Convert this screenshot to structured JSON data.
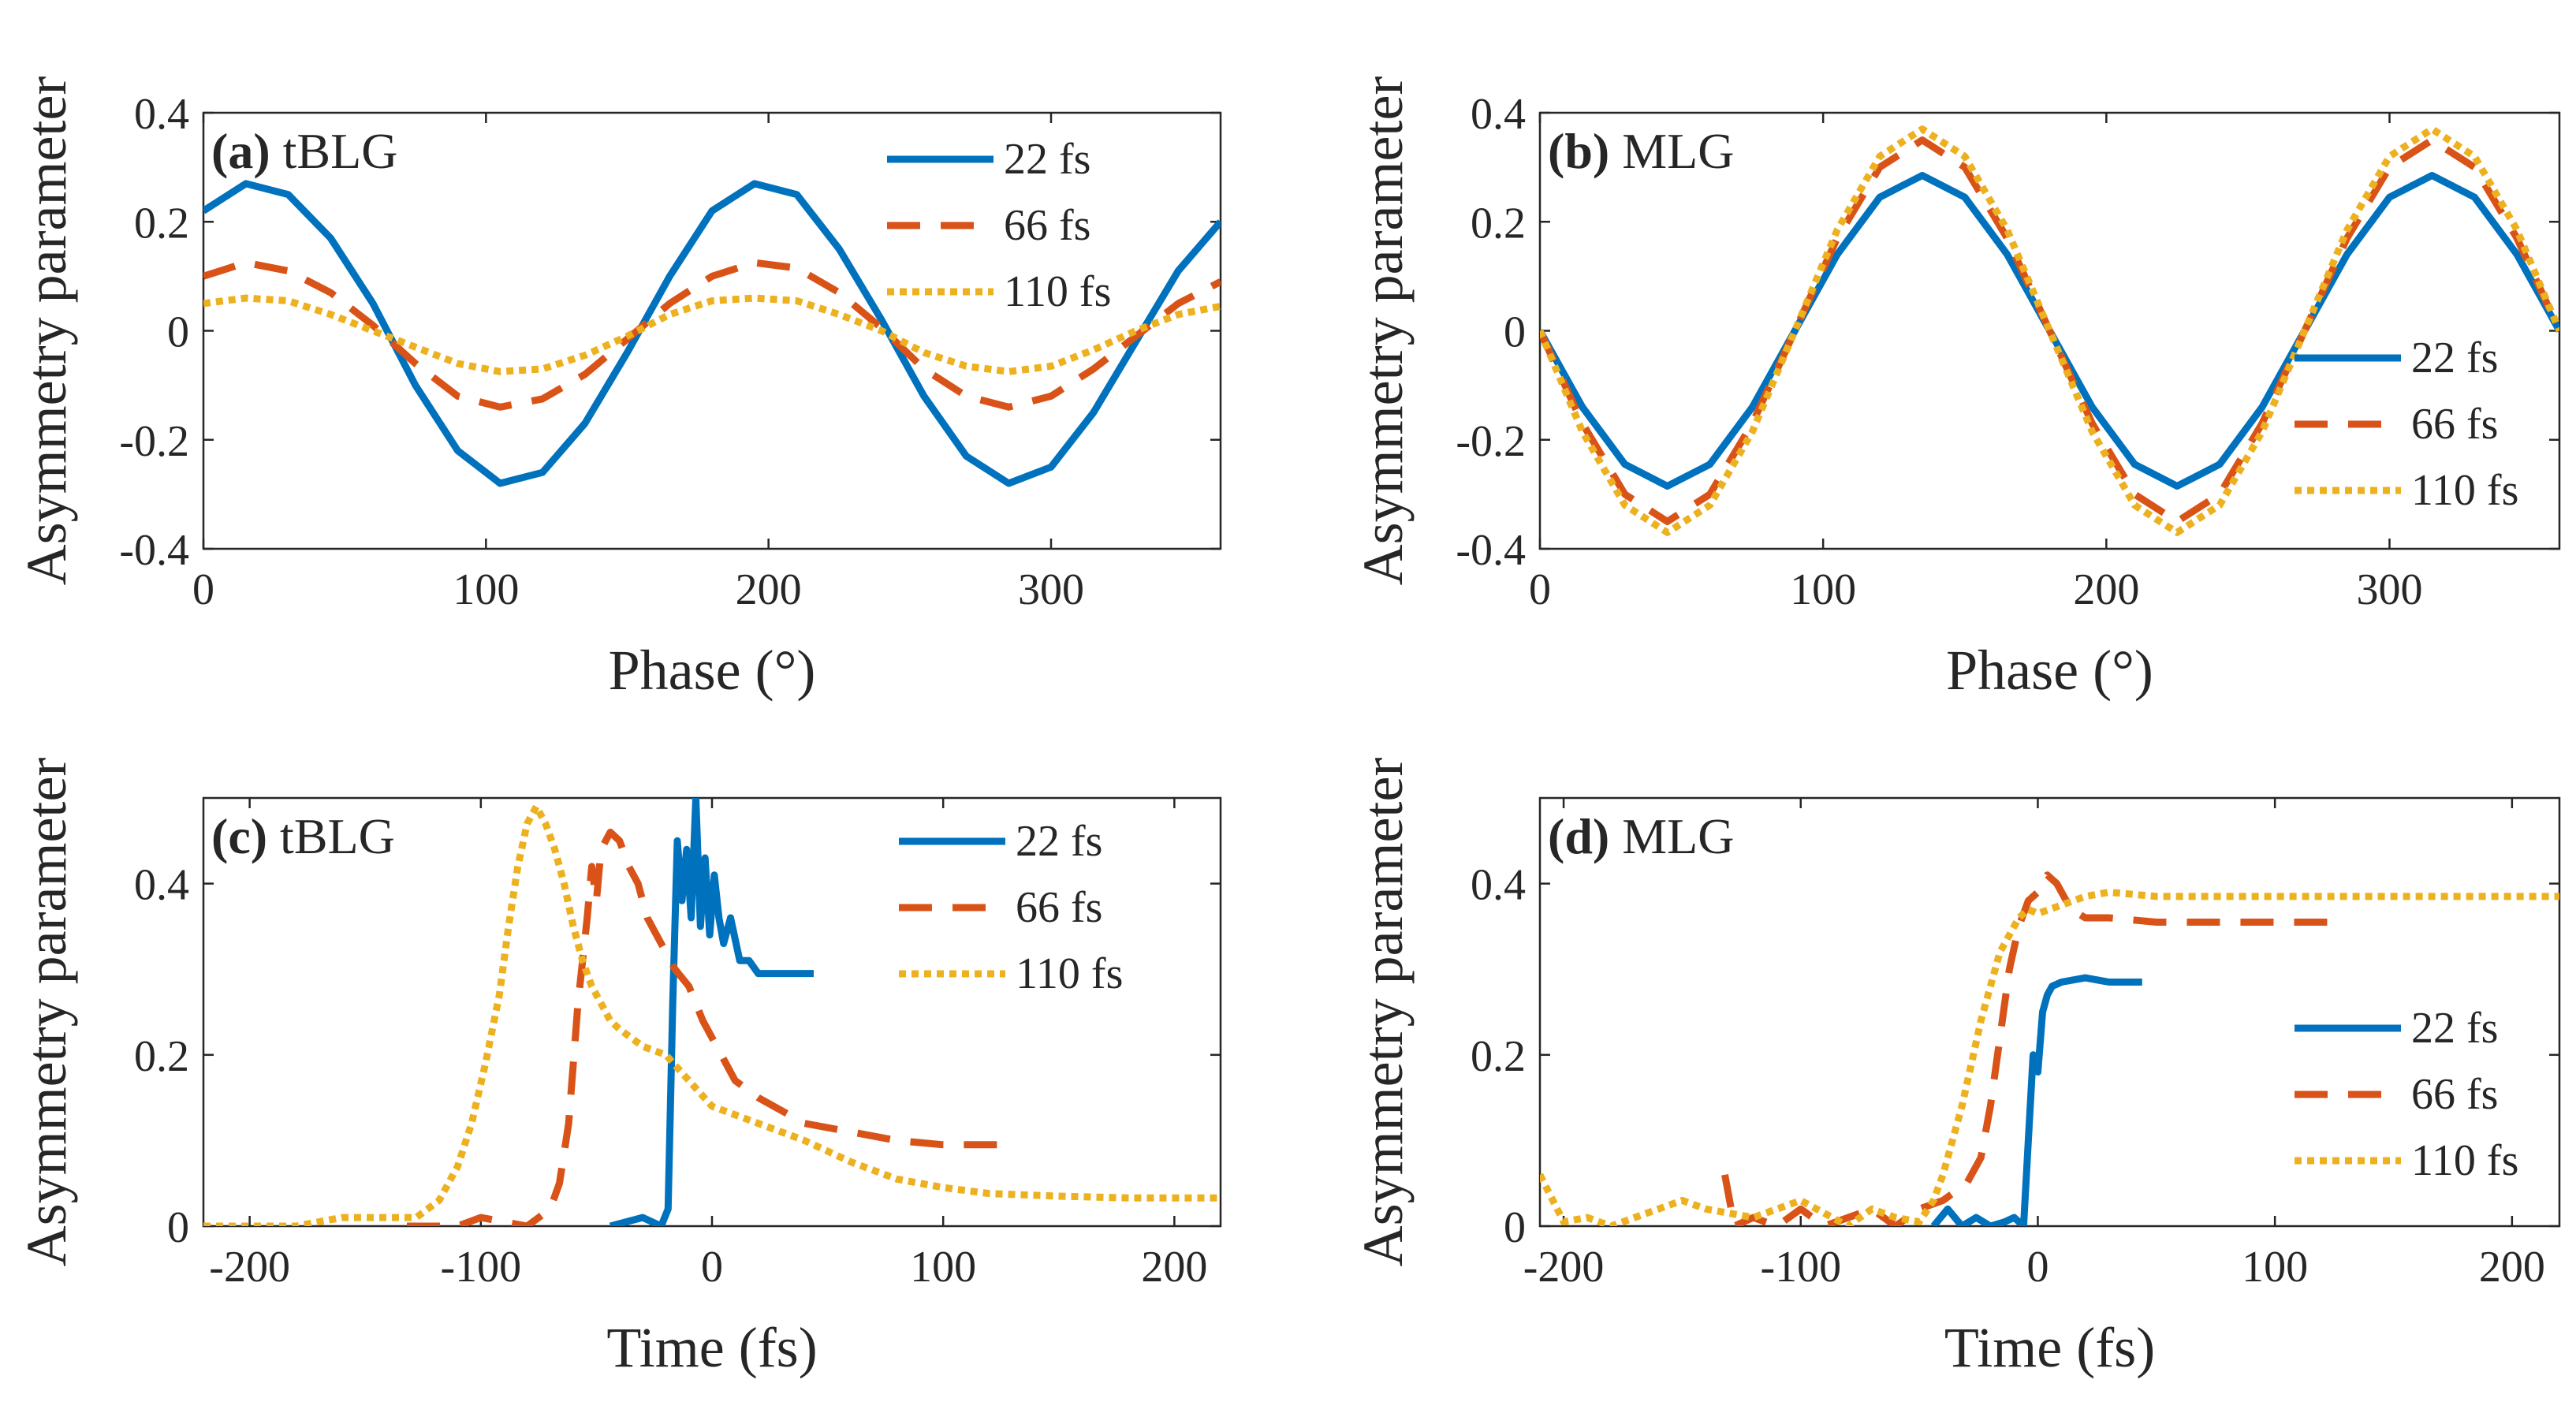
{
  "colors": {
    "s22": "#0072BD",
    "s66": "#D95319",
    "s110": "#EDB120"
  },
  "chart_data": [
    {
      "id": "a",
      "type": "line",
      "title_tag": "(a)",
      "title_text": "tBLG",
      "xlabel": "Phase (°)",
      "ylabel": "Asymmetry parameter",
      "xlim": [
        0,
        360
      ],
      "ylim": [
        -0.4,
        0.4
      ],
      "xticks": [
        0,
        100,
        200,
        300
      ],
      "xtick_labels": [
        "0",
        "100",
        "200",
        "300"
      ],
      "yticks": [
        -0.4,
        -0.2,
        0,
        0.2,
        0.4
      ],
      "ytick_labels": [
        "-0.4",
        "-0.2",
        "0",
        "0.2",
        "0.4"
      ],
      "legend_position": "top-right",
      "series": [
        {
          "name": "22 fs",
          "style": "solid",
          "color": "#0072BD",
          "x": [
            0,
            15,
            30,
            45,
            60,
            75,
            90,
            105,
            120,
            135,
            150,
            165,
            180,
            195,
            210,
            225,
            240,
            255,
            270,
            285,
            300,
            315,
            330,
            345,
            360
          ],
          "y": [
            0.22,
            0.27,
            0.25,
            0.17,
            0.05,
            -0.1,
            -0.22,
            -0.28,
            -0.26,
            -0.17,
            -0.04,
            0.1,
            0.22,
            0.27,
            0.25,
            0.15,
            0.02,
            -0.12,
            -0.23,
            -0.28,
            -0.25,
            -0.15,
            -0.02,
            0.11,
            0.2
          ]
        },
        {
          "name": "66 fs",
          "style": "dashed",
          "color": "#D95319",
          "x": [
            0,
            15,
            30,
            45,
            60,
            75,
            90,
            105,
            120,
            135,
            150,
            165,
            180,
            195,
            210,
            225,
            240,
            255,
            270,
            285,
            300,
            315,
            330,
            345,
            360
          ],
          "y": [
            0.1,
            0.125,
            0.11,
            0.07,
            0.01,
            -0.06,
            -0.12,
            -0.14,
            -0.125,
            -0.08,
            -0.015,
            0.05,
            0.1,
            0.125,
            0.115,
            0.07,
            0.005,
            -0.07,
            -0.12,
            -0.14,
            -0.12,
            -0.07,
            -0.01,
            0.05,
            0.09
          ]
        },
        {
          "name": "110 fs",
          "style": "dotted",
          "color": "#EDB120",
          "x": [
            0,
            15,
            30,
            45,
            60,
            75,
            90,
            105,
            120,
            135,
            150,
            165,
            180,
            195,
            210,
            225,
            240,
            255,
            270,
            285,
            300,
            315,
            330,
            345,
            360
          ],
          "y": [
            0.05,
            0.06,
            0.055,
            0.03,
            0.0,
            -0.03,
            -0.06,
            -0.075,
            -0.07,
            -0.045,
            -0.01,
            0.03,
            0.055,
            0.06,
            0.055,
            0.03,
            0.0,
            -0.04,
            -0.065,
            -0.075,
            -0.065,
            -0.035,
            0.0,
            0.03,
            0.045
          ]
        }
      ]
    },
    {
      "id": "b",
      "type": "line",
      "title_tag": "(b)",
      "title_text": "MLG",
      "xlabel": "Phase (°)",
      "ylabel": "Asymmetry parameter",
      "xlim": [
        0,
        360
      ],
      "ylim": [
        -0.4,
        0.4
      ],
      "xticks": [
        0,
        100,
        200,
        300
      ],
      "xtick_labels": [
        "0",
        "100",
        "200",
        "300"
      ],
      "yticks": [
        -0.4,
        -0.2,
        0,
        0.2,
        0.4
      ],
      "ytick_labels": [
        "-0.4",
        "-0.2",
        "0",
        "0.2",
        "0.4"
      ],
      "legend_position": "right",
      "series": [
        {
          "name": "22 fs",
          "style": "solid",
          "color": "#0072BD",
          "x": [
            0,
            15,
            30,
            45,
            60,
            75,
            90,
            105,
            120,
            135,
            150,
            165,
            180,
            195,
            210,
            225,
            240,
            255,
            270,
            285,
            300,
            315,
            330,
            345,
            360
          ],
          "y": [
            0.0,
            -0.14,
            -0.245,
            -0.285,
            -0.245,
            -0.14,
            0.0,
            0.14,
            0.245,
            0.285,
            0.245,
            0.14,
            0.0,
            -0.14,
            -0.245,
            -0.285,
            -0.245,
            -0.14,
            0.0,
            0.14,
            0.245,
            0.285,
            0.245,
            0.14,
            0.0
          ]
        },
        {
          "name": "66 fs",
          "style": "dashed",
          "color": "#D95319",
          "x": [
            0,
            15,
            30,
            45,
            60,
            75,
            90,
            105,
            120,
            135,
            150,
            165,
            180,
            195,
            210,
            225,
            240,
            255,
            270,
            285,
            300,
            315,
            330,
            345,
            360
          ],
          "y": [
            0.0,
            -0.17,
            -0.3,
            -0.35,
            -0.3,
            -0.17,
            0.0,
            0.17,
            0.3,
            0.35,
            0.3,
            0.17,
            0.0,
            -0.17,
            -0.3,
            -0.35,
            -0.3,
            -0.17,
            0.0,
            0.17,
            0.3,
            0.35,
            0.3,
            0.17,
            0.0
          ]
        },
        {
          "name": "110 fs",
          "style": "dotted",
          "color": "#EDB120",
          "x": [
            0,
            15,
            30,
            45,
            60,
            75,
            90,
            105,
            120,
            135,
            150,
            165,
            180,
            195,
            210,
            225,
            240,
            255,
            270,
            285,
            300,
            315,
            330,
            345,
            360
          ],
          "y": [
            0.0,
            -0.185,
            -0.32,
            -0.37,
            -0.32,
            -0.185,
            0.0,
            0.185,
            0.32,
            0.37,
            0.32,
            0.185,
            0.0,
            -0.185,
            -0.32,
            -0.37,
            -0.32,
            -0.185,
            0.0,
            0.185,
            0.32,
            0.37,
            0.32,
            0.185,
            0.0
          ]
        }
      ]
    },
    {
      "id": "c",
      "type": "line",
      "title_tag": "(c)",
      "title_text": "tBLG",
      "xlabel": "Time (fs)",
      "ylabel": "Asymmetry parameter",
      "xlim": [
        -220,
        220
      ],
      "ylim": [
        0,
        0.5
      ],
      "xticks": [
        -200,
        -100,
        0,
        100,
        200
      ],
      "xtick_labels": [
        "-200",
        "-100",
        "0",
        "100",
        "200"
      ],
      "yticks": [
        0,
        0.2,
        0.4
      ],
      "ytick_labels": [
        "0",
        "0.2",
        "0.4"
      ],
      "legend_position": "top-right",
      "series": [
        {
          "name": "22 fs",
          "style": "solid",
          "color": "#0072BD",
          "x": [
            -44,
            -30,
            -22,
            -19,
            -17,
            -15,
            -13,
            -11,
            -9,
            -7,
            -5,
            -3,
            -1,
            1,
            3,
            5,
            8,
            12,
            16,
            20,
            30,
            44
          ],
          "y": [
            0.0,
            0.01,
            0.0,
            0.02,
            0.26,
            0.45,
            0.38,
            0.44,
            0.36,
            0.5,
            0.35,
            0.43,
            0.34,
            0.41,
            0.36,
            0.33,
            0.36,
            0.31,
            0.31,
            0.295,
            0.295,
            0.295
          ]
        },
        {
          "name": "66 fs",
          "style": "dashed",
          "color": "#D95319",
          "x": [
            -132,
            -110,
            -100,
            -80,
            -70,
            -66,
            -62,
            -58,
            -54,
            -52,
            -50,
            -48,
            -44,
            -40,
            -36,
            -32,
            -28,
            -22,
            -16,
            -10,
            -4,
            2,
            10,
            20,
            40,
            60,
            80,
            100,
            130
          ],
          "y": [
            0.0,
            0.0,
            0.01,
            0.0,
            0.02,
            0.05,
            0.12,
            0.26,
            0.36,
            0.42,
            0.38,
            0.44,
            0.46,
            0.45,
            0.42,
            0.4,
            0.36,
            0.33,
            0.3,
            0.28,
            0.24,
            0.21,
            0.17,
            0.15,
            0.12,
            0.11,
            0.1,
            0.095,
            0.095
          ]
        },
        {
          "name": "110 fs",
          "style": "dotted",
          "color": "#EDB120",
          "x": [
            -220,
            -180,
            -160,
            -140,
            -128,
            -118,
            -110,
            -104,
            -98,
            -92,
            -88,
            -84,
            -80,
            -76,
            -72,
            -68,
            -64,
            -60,
            -56,
            -52,
            -48,
            -44,
            -40,
            -30,
            -20,
            -10,
            0,
            20,
            40,
            60,
            80,
            100,
            120,
            150,
            180,
            220
          ],
          "y": [
            0.0,
            0.0,
            0.01,
            0.01,
            0.01,
            0.03,
            0.07,
            0.12,
            0.19,
            0.27,
            0.35,
            0.42,
            0.47,
            0.49,
            0.47,
            0.44,
            0.4,
            0.35,
            0.31,
            0.28,
            0.26,
            0.24,
            0.23,
            0.21,
            0.2,
            0.17,
            0.14,
            0.12,
            0.1,
            0.075,
            0.055,
            0.045,
            0.038,
            0.035,
            0.033,
            0.033
          ]
        }
      ]
    },
    {
      "id": "d",
      "type": "line",
      "title_tag": "(d)",
      "title_text": "MLG",
      "xlabel": "Time (fs)",
      "ylabel": "Asymmetry parameter",
      "xlim": [
        -210,
        220
      ],
      "ylim": [
        0,
        0.5
      ],
      "xticks": [
        -200,
        -100,
        0,
        100,
        200
      ],
      "xtick_labels": [
        "-200",
        "-100",
        "0",
        "100",
        "200"
      ],
      "yticks": [
        0,
        0.2,
        0.4
      ],
      "ytick_labels": [
        "0",
        "0.2",
        "0.4"
      ],
      "legend_position": "right",
      "series": [
        {
          "name": "22 fs",
          "style": "solid",
          "color": "#0072BD",
          "x": [
            -44,
            -38,
            -32,
            -26,
            -20,
            -14,
            -10,
            -6,
            -4,
            -2,
            0,
            2,
            4,
            6,
            10,
            20,
            30,
            44
          ],
          "y": [
            0.0,
            0.02,
            0.0,
            0.01,
            0.0,
            0.005,
            0.01,
            0.0,
            0.1,
            0.2,
            0.18,
            0.25,
            0.27,
            0.28,
            0.285,
            0.29,
            0.285,
            0.285
          ]
        },
        {
          "name": "66 fs",
          "style": "dashed",
          "color": "#D95319",
          "x": [
            -132,
            -128,
            -120,
            -110,
            -100,
            -90,
            -80,
            -70,
            -60,
            -50,
            -40,
            -30,
            -24,
            -20,
            -16,
            -12,
            -8,
            -4,
            0,
            4,
            8,
            14,
            20,
            30,
            50,
            80,
            130
          ],
          "y": [
            0.06,
            0.0,
            0.01,
            0.0,
            0.02,
            0.0,
            0.01,
            0.02,
            0.0,
            0.02,
            0.03,
            0.05,
            0.08,
            0.14,
            0.22,
            0.3,
            0.35,
            0.38,
            0.39,
            0.41,
            0.4,
            0.37,
            0.36,
            0.36,
            0.355,
            0.355,
            0.355
          ]
        },
        {
          "name": "110 fs",
          "style": "dotted",
          "color": "#EDB120",
          "x": [
            -210,
            -200,
            -190,
            -180,
            -170,
            -160,
            -150,
            -140,
            -130,
            -120,
            -110,
            -100,
            -90,
            -80,
            -70,
            -60,
            -50,
            -44,
            -40,
            -36,
            -32,
            -28,
            -24,
            -20,
            -16,
            -12,
            -8,
            -4,
            0,
            10,
            20,
            30,
            50,
            80,
            120,
            160,
            220
          ],
          "y": [
            0.06,
            0.005,
            0.01,
            0.0,
            0.01,
            0.02,
            0.03,
            0.02,
            0.015,
            0.01,
            0.02,
            0.03,
            0.015,
            0.0,
            0.02,
            0.01,
            0.005,
            0.03,
            0.06,
            0.1,
            0.14,
            0.19,
            0.24,
            0.28,
            0.32,
            0.34,
            0.36,
            0.37,
            0.365,
            0.375,
            0.385,
            0.39,
            0.385,
            0.385,
            0.385,
            0.385,
            0.385
          ]
        }
      ]
    }
  ]
}
